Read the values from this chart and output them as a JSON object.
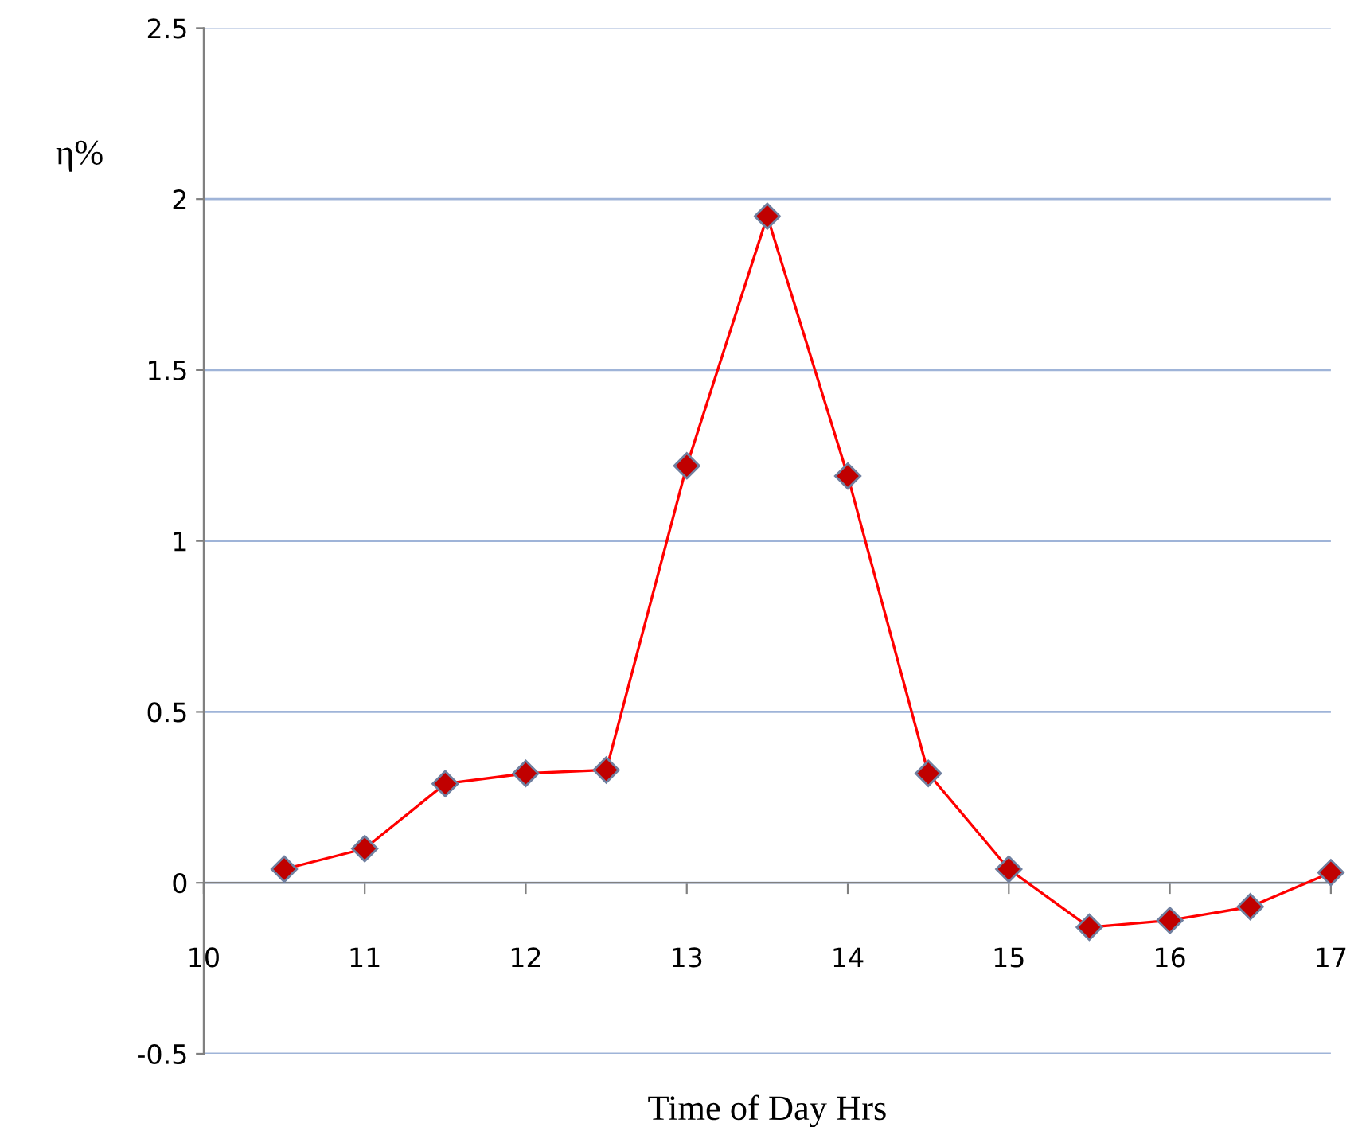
{
  "chart_data": {
    "type": "line",
    "xlabel": "Time of Day Hrs",
    "ylabel": "η%",
    "x": [
      10.5,
      11,
      11.5,
      12,
      12.5,
      13,
      13.5,
      14,
      14.5,
      15,
      15.5,
      16,
      16.5,
      17
    ],
    "series": [
      {
        "color": "#ff0000",
        "values": [
          0.04,
          0.1,
          0.29,
          0.32,
          0.33,
          1.22,
          1.95,
          1.19,
          0.32,
          0.04,
          -0.13,
          -0.11,
          -0.07,
          0.03
        ]
      }
    ],
    "xlim": [
      10,
      17
    ],
    "xticks": [
      10,
      11,
      12,
      13,
      14,
      15,
      16,
      17
    ],
    "ylim": [
      -0.5,
      2.5
    ],
    "yticks": [
      -0.5,
      0,
      0.5,
      1,
      1.5,
      2,
      2.5
    ],
    "grid": "y",
    "marker": "diamond",
    "line_style": "solid",
    "legend": false
  }
}
